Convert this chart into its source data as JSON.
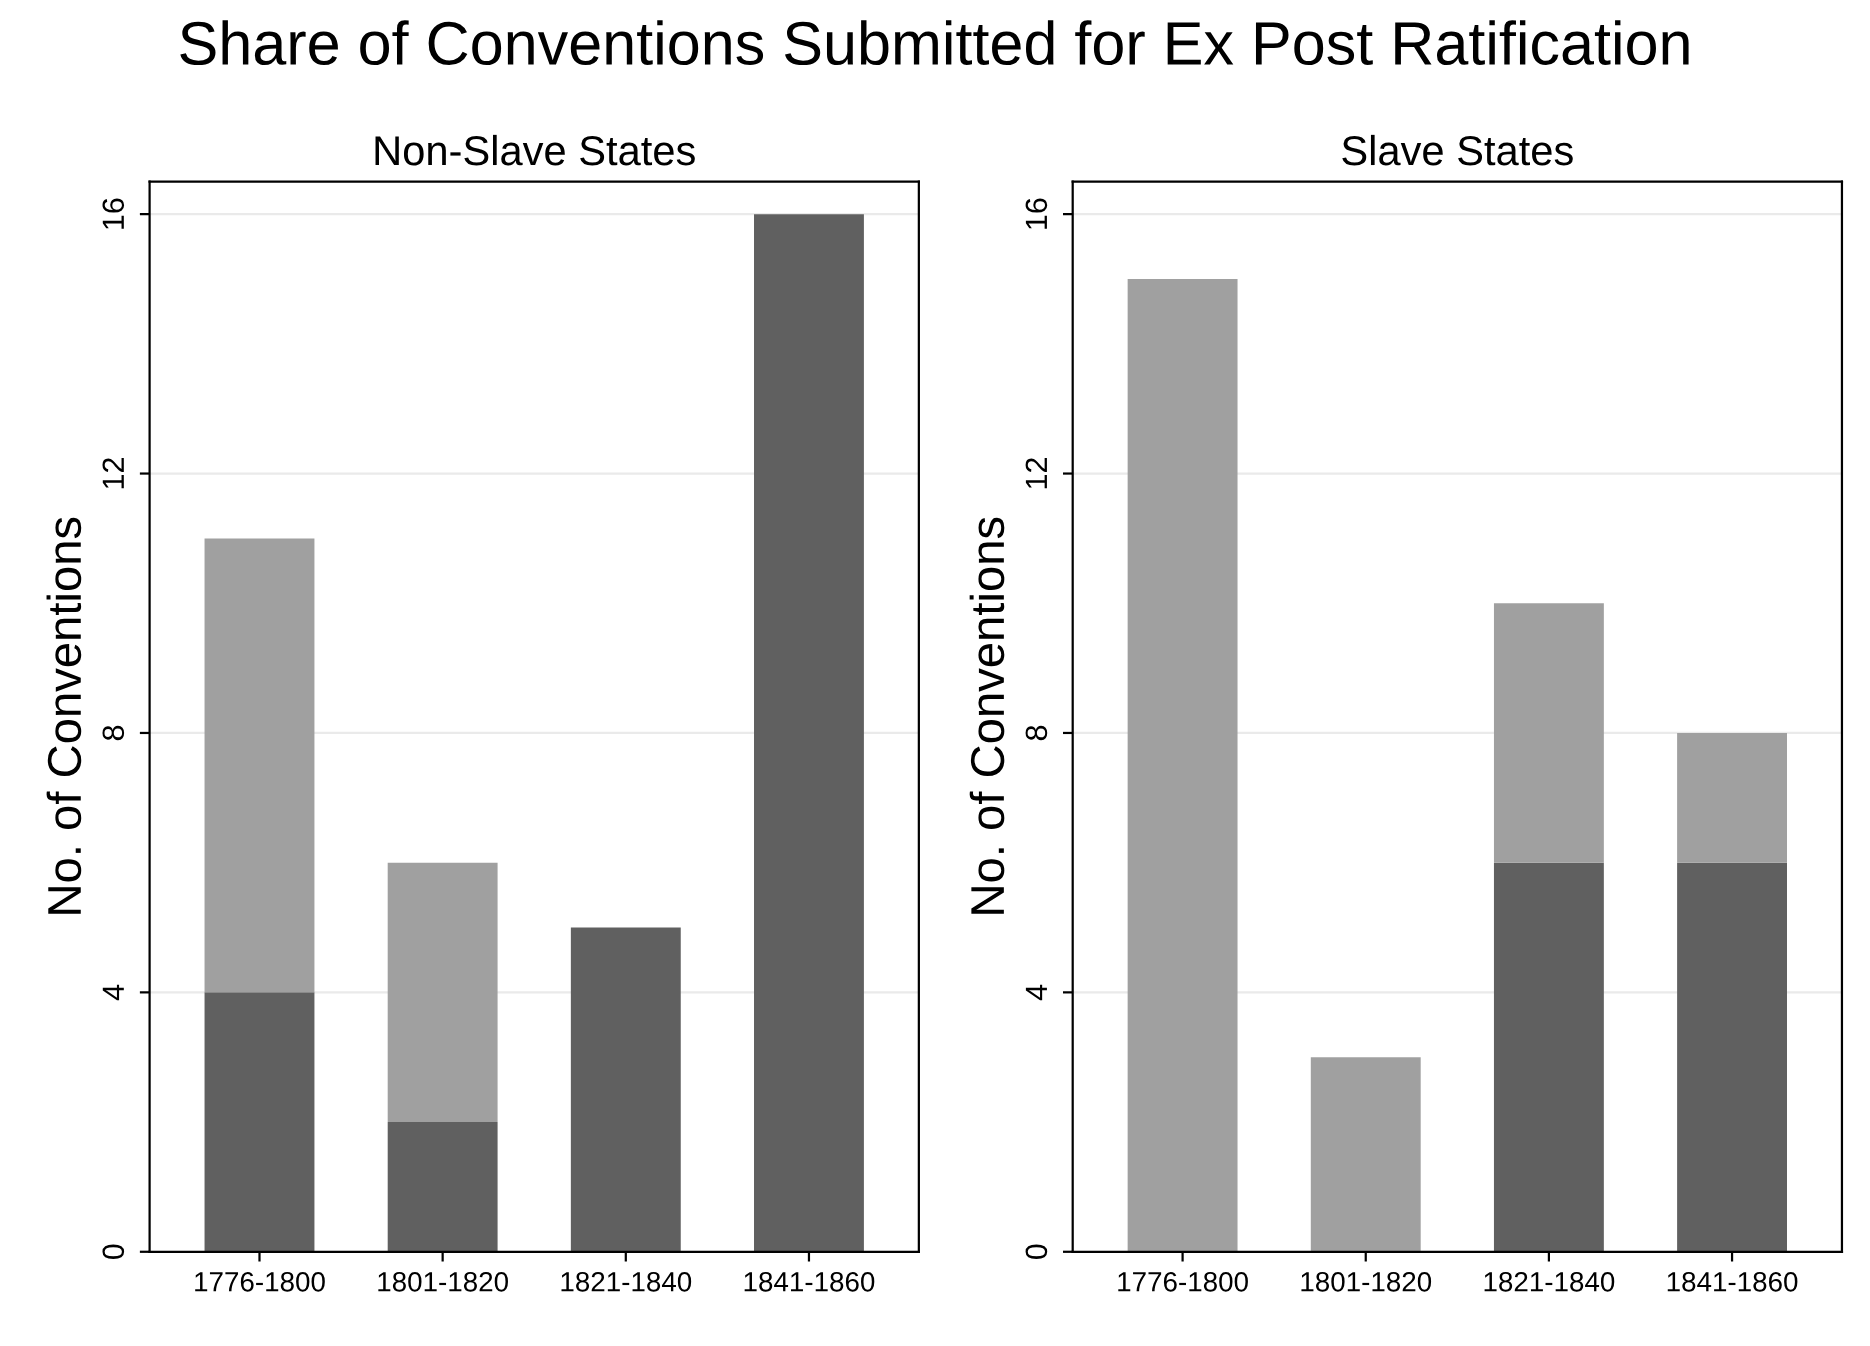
{
  "chart_data": [
    {
      "type": "bar",
      "title": "Share of Conventions Submitted for Ex Post Ratification",
      "subtitle": "Non-Slave States",
      "ylabel": "No. of Conventions",
      "categories": [
        "1776-1800",
        "1801-1820",
        "1821-1840",
        "1841-1860"
      ],
      "stacked": true,
      "series": [
        {
          "color": "#606060",
          "values": [
            4,
            2,
            5,
            16
          ]
        },
        {
          "color": "#a0a0a0",
          "values": [
            7,
            4,
            0,
            0
          ]
        }
      ],
      "ylim": [
        0,
        16.5
      ],
      "yticks": [
        0,
        4,
        8,
        12,
        16
      ],
      "grid": "y"
    },
    {
      "type": "bar",
      "subtitle": "Slave States",
      "ylabel": "No. of Conventions",
      "categories": [
        "1776-1800",
        "1801-1820",
        "1821-1840",
        "1841-1860"
      ],
      "stacked": true,
      "series": [
        {
          "color": "#606060",
          "values": [
            0,
            0,
            6,
            6
          ]
        },
        {
          "color": "#a0a0a0",
          "values": [
            15,
            3,
            4,
            2
          ]
        }
      ],
      "ylim": [
        0,
        16.5
      ],
      "yticks": [
        0,
        4,
        8,
        12,
        16
      ],
      "grid": "y"
    }
  ]
}
